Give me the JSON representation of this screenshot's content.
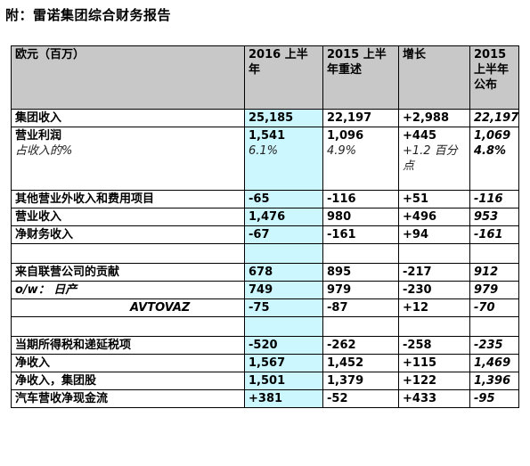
{
  "page": {
    "title": "附：雷诺集团综合财务报告"
  },
  "table": {
    "header": {
      "label": "欧元（百万）",
      "col_2016": "2016 上半年",
      "col_2015r": "2015 上半年重述",
      "col_growth": "增长",
      "col_2015p": "2015 上半年公布"
    },
    "rows": [
      {
        "label": "集团收入",
        "v2016": "25,185",
        "v2015r": "22,197",
        "growth": "+2,988",
        "v2015p": "22,197"
      },
      {
        "label": "营业利润",
        "v2016": "1,541",
        "v2015r": "1,096",
        "growth": "+445",
        "v2015p": "1,069"
      },
      {
        "label": "其他营业外收入和费用项目",
        "v2016": "-65",
        "v2015r": "-116",
        "growth": "+51",
        "v2015p": "-116"
      },
      {
        "label": "营业收入",
        "v2016": "1,476",
        "v2015r": "980",
        "growth": "+496",
        "v2015p": "953"
      },
      {
        "label": "净财务收入",
        "v2016": "-67",
        "v2015r": "-161",
        "growth": "+94",
        "v2015p": "-161"
      },
      {
        "label": "来自联营公司的贡献",
        "v2016": "678",
        "v2015r": "895",
        "growth": "-217",
        "v2015p": "912"
      },
      {
        "label": "o/w： 日产",
        "v2016": "749",
        "v2015r": "979",
        "growth": "-230",
        "v2015p": "979"
      },
      {
        "label": "AVTOVAZ",
        "v2016": "-75",
        "v2015r": "-87",
        "growth": "+12",
        "v2015p": "-70"
      },
      {
        "label": "当期所得税和递延税项",
        "v2016": "-520",
        "v2015r": "-262",
        "growth": "-258",
        "v2015p": "-235"
      },
      {
        "label": "净收入",
        "v2016": "1,567",
        "v2015r": "1,452",
        "growth": "+115",
        "v2015p": "1,469"
      },
      {
        "label": "净收入，集团股",
        "v2016": "1,501",
        "v2015r": "1,379",
        "growth": "+122",
        "v2015p": "1,396"
      },
      {
        "label": "汽车营收净现金流",
        "v2016": "+381",
        "v2015r": "-52",
        "growth": "+433",
        "v2015p": "-95"
      }
    ],
    "margin_row": {
      "label": "占收入的%",
      "v2016": "6.1%",
      "v2015r": "4.9%",
      "growth": "+1.2 百分点",
      "v2015p": "4.8%"
    }
  }
}
